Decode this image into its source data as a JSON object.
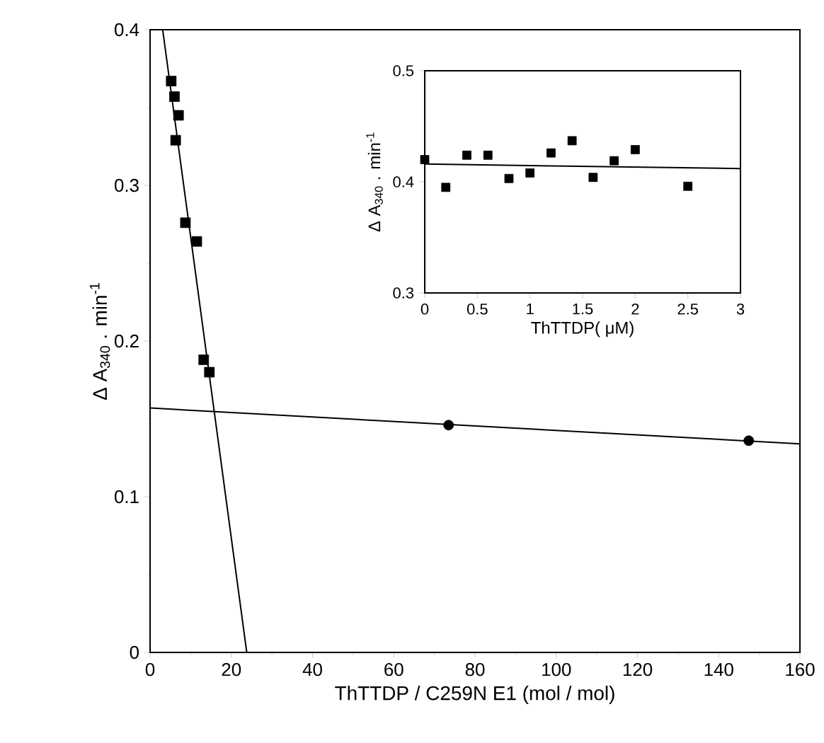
{
  "chart_data": [
    {
      "type": "scatter",
      "xlabel": "ThTTDP /  C259N E1 (mol / mol)",
      "ylabel": "Δ A$_{340}$ . min$^{-1}$",
      "xlim": [
        0,
        160
      ],
      "ylim": [
        0,
        0.4
      ],
      "xticks": [
        0,
        20,
        40,
        60,
        80,
        100,
        120,
        140,
        160
      ],
      "yticks": [
        0,
        0.1,
        0.2,
        0.3,
        0.4
      ],
      "series": [
        {
          "marker": "square",
          "color": "#000000",
          "x": [
            5.2,
            6,
            7,
            6.3,
            8.7,
            11.5,
            13.2,
            14.6
          ],
          "values": [
            0.367,
            0.357,
            0.345,
            0.329,
            0.276,
            0.264,
            0.188,
            0.18
          ]
        },
        {
          "marker": "circle",
          "color": "#000000",
          "x": [
            73.5,
            147.4
          ],
          "values": [
            0.146,
            0.136
          ]
        },
        {
          "type": "line",
          "color": "#000000",
          "x": [
            3.1,
            23.8
          ],
          "values": [
            0.4,
            0
          ]
        },
        {
          "type": "line",
          "color": "#000000",
          "x": [
            0,
            160
          ],
          "values": [
            0.157,
            0.134
          ]
        }
      ]
    },
    {
      "type": "scatter",
      "xlabel": "ThTTDP( μM)",
      "ylabel": "Δ A$_{340}$ . min$^{-1}$",
      "xlim": [
        0,
        3
      ],
      "ylim": [
        0.3,
        0.5
      ],
      "xticks": [
        0,
        0.5,
        1,
        1.5,
        2,
        2.5,
        3
      ],
      "yticks": [
        0.3,
        0.4,
        0.5
      ],
      "series": [
        {
          "marker": "square",
          "color": "#000000",
          "x": [
            0,
            0.2,
            0.4,
            0.6,
            0.8,
            1.0,
            1.2,
            1.4,
            1.6,
            1.8,
            2.0,
            2.5
          ],
          "values": [
            0.42,
            0.395,
            0.424,
            0.424,
            0.403,
            0.408,
            0.426,
            0.437,
            0.404,
            0.419,
            0.429,
            0.396
          ]
        },
        {
          "type": "line",
          "color": "#000000",
          "x": [
            0,
            3
          ],
          "values": [
            0.416,
            0.412
          ]
        }
      ]
    }
  ]
}
